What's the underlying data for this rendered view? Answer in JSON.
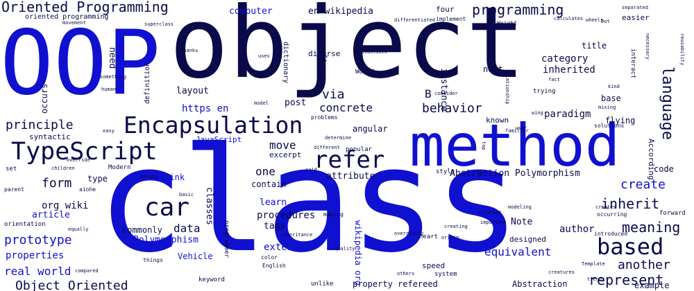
{
  "colors": {
    "blue": "#1010d0",
    "navy": "#0a0a4a",
    "background": "#ffffff"
  },
  "words": {
    "oop": "OOP",
    "object": "object",
    "method": "method",
    "class": "class",
    "encapsulation": "Encapsulation",
    "typescript": "TypeScript",
    "refer": "refer",
    "car": "car",
    "based": "based",
    "language": "language",
    "oriented_programming": "Oriented Programming",
    "programming": "programming",
    "computer": "computer",
    "en_wikipedia": "en wikipedia",
    "four": "four",
    "category": "category",
    "inherited": "inherited",
    "via": "via",
    "concrete": "concrete",
    "behavior": "behavior",
    "principle": "principle",
    "https_en": "https en",
    "layout": "layout",
    "post": "post",
    "paradigm": "paradigm",
    "known": "known",
    "move": "move",
    "one": "one",
    "form": "form",
    "contain": "contain",
    "attribute": "attribute",
    "abstraction_polymorphism": "Abstraction Polymorphism",
    "create": "create",
    "inherit": "inherit",
    "meaning": "meaning",
    "org_wiki": "org wiki",
    "data": "data",
    "prototype": "prototype",
    "polymorphism": "Polymorphism",
    "article": "article",
    "procedures": "procedures",
    "tags": "tags",
    "learn": "learn",
    "note": "Note",
    "extend": "extend",
    "equivalent": "equivalent",
    "another": "another",
    "represent": "represent",
    "author": "author",
    "properties": "properties",
    "real_world": "real world",
    "vehicle": "Vehicle",
    "object_oriented": "Object Oriented",
    "abstraction": "Abstraction",
    "property_refereed": "property refereed",
    "example": "example",
    "think": "Think",
    "type": "type",
    "classes": "classes",
    "wikipedia_org": "wikipedia org",
    "javascript": "JavaScript",
    "excerpt": "excerpt",
    "angular": "angular",
    "popular": "popular",
    "next": "next",
    "base": "base",
    "flying": "flying",
    "title": "title",
    "instance": "instance",
    "often": "often",
    "need": "need",
    "occurs": "occurs",
    "definition": "definition",
    "dictionary": "dictionary",
    "diverse": "diverse",
    "world": "World",
    "b": "B",
    "according": "According",
    "code": "code",
    "syntactic": "syntactic",
    "commonly": "commonly",
    "designed": "designed",
    "speed": "speed",
    "modern": "Modern",
    "keyword": "keyword",
    "unlike": "unlike",
    "system": "system",
    "style": "style",
    "solutions": "solutions",
    "problems": "problems",
    "interact": "interact",
    "implement": "implement",
    "weight": "Weight",
    "easier": "easier",
    "calculates": "calculates",
    "wheels": "wheels",
    "introduced": "introduced",
    "differentiated": "differentiated",
    "superclass": "superclass",
    "programmer": "programmer",
    "color": "color",
    "english": "English",
    "making": "making",
    "attached": "attached",
    "important": "important",
    "creating": "creating",
    "forward": "forward",
    "trying": "trying",
    "familiar": "familiar",
    "model": "model",
    "determine": "determine",
    "different": "different",
    "heart": "heart",
    "quality": "quality",
    "origin": "origin",
    "equally": "equally",
    "orientation": "orientation",
    "children": "children",
    "set": "set",
    "parent": "parent",
    "aiohe": "aiohe",
    "basic": "basic",
    "moving": "moving",
    "override": "override",
    "easy": "easy",
    "thanks": "Thanks",
    "uses": "uses",
    "something": "something",
    "human": "human",
    "movement": "movement",
    "instantiate": "instantiate",
    "separated": "separated",
    "necessary": "necessary",
    "reusability": "reusability",
    "things": "things",
    "template": "Template",
    "creatures": "creatures",
    "modeling": "modeling",
    "overriding": "overriding",
    "creates": "creates",
    "others": "others",
    "fact": "fact",
    "kind": "kind",
    "relationship": "relationship",
    "consider": "consider",
    "compared": "compared",
    "wing": "wing",
    "loop": "loop",
    "user": "user",
    "said": "said",
    "mixing": "mixing",
    "extends": "extends",
    "trends": "trends",
    "occurring": "occurring",
    "dot": "Dot",
    "inheritance": "inheritance",
    "way": "way",
    "top": "top",
    "wrap": "wrap",
    "list": "list",
    "main": "main",
    "known_as": "known as",
    "oriented_programming_small": "oriented programming",
    "multiple": "multiple"
  }
}
